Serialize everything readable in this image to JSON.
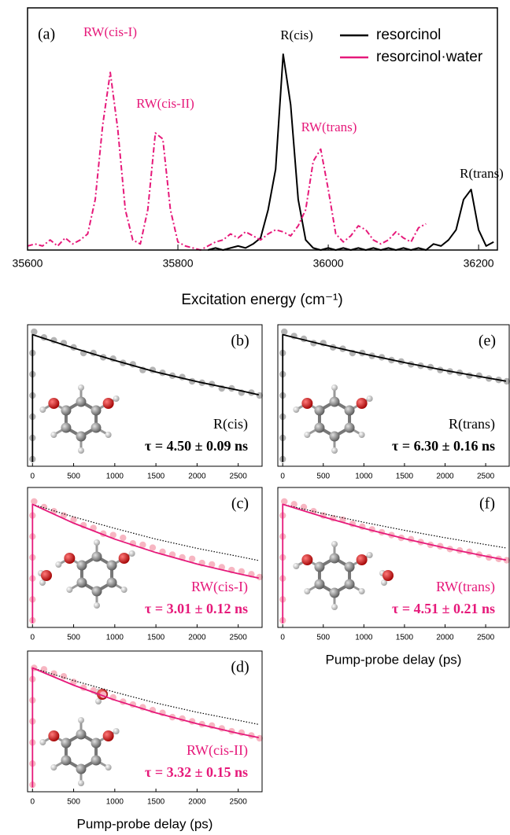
{
  "chart_data": [
    {
      "type": "line",
      "panel_label": "(a)",
      "xlabel": "Excitation energy (cm⁻¹)",
      "xlim": [
        35600,
        36225
      ],
      "ylim": [
        0,
        1.2
      ],
      "xticks": [
        35600,
        35800,
        36000,
        36200
      ],
      "legend": "upper right",
      "annotations": [
        {
          "text": "RW(cis-I)",
          "color": "#e6197a"
        },
        {
          "text": "RW(cis-II)",
          "color": "#e6197a"
        },
        {
          "text": "R(cis)",
          "color": "#000000"
        },
        {
          "text": "RW(trans)",
          "color": "#e6197a"
        },
        {
          "text": "R(trans)",
          "color": "#000000"
        }
      ],
      "x": [
        35600,
        35610,
        35620,
        35630,
        35640,
        35650,
        35660,
        35670,
        35680,
        35690,
        35700,
        35710,
        35720,
        35730,
        35740,
        35750,
        35760,
        35770,
        35780,
        35790,
        35800,
        35810,
        35820,
        35830,
        35840,
        35850,
        35860,
        35870,
        35880,
        35890,
        35900,
        35910,
        35920,
        35930,
        35940,
        35950,
        35960,
        35970,
        35980,
        35990,
        36000,
        36010,
        36020,
        36030,
        36040,
        36050,
        36060,
        36070,
        36080,
        36090,
        36100,
        36110,
        36120,
        36130,
        36140,
        36150,
        36160,
        36170,
        36180,
        36190,
        36200,
        36210,
        36220
      ],
      "series": [
        {
          "name": "resorcinol",
          "color": "#000000",
          "style": "line",
          "values": [
            null,
            null,
            null,
            null,
            null,
            null,
            null,
            null,
            null,
            null,
            null,
            null,
            null,
            null,
            null,
            null,
            null,
            null,
            null,
            null,
            null,
            null,
            null,
            null,
            0.0,
            0.01,
            0.0,
            0.01,
            0.02,
            0.01,
            0.03,
            0.06,
            0.2,
            0.4,
            0.97,
            0.72,
            0.25,
            0.05,
            0.01,
            0.0,
            0.01,
            0.0,
            0.01,
            0.0,
            0.01,
            0.0,
            0.01,
            0.0,
            0.01,
            0.0,
            0.01,
            0.0,
            0.01,
            0.0,
            0.03,
            0.02,
            0.05,
            0.1,
            0.25,
            0.3,
            0.1,
            0.02,
            0.04
          ]
        },
        {
          "name": "resorcinol·water",
          "color": "#e6197a",
          "style": "dashdot",
          "values": [
            0.02,
            0.03,
            0.02,
            0.05,
            0.02,
            0.06,
            0.03,
            0.05,
            0.08,
            0.25,
            0.62,
            0.88,
            0.6,
            0.2,
            0.05,
            0.03,
            0.2,
            0.58,
            0.55,
            0.2,
            0.04,
            0.02,
            0.01,
            0.0,
            0.02,
            0.04,
            0.05,
            0.08,
            0.06,
            0.09,
            0.07,
            0.05,
            0.08,
            0.1,
            0.09,
            0.07,
            0.12,
            0.2,
            0.44,
            0.5,
            0.3,
            0.08,
            0.04,
            0.07,
            0.12,
            0.1,
            0.05,
            0.03,
            0.05,
            0.09,
            0.06,
            0.04,
            0.11,
            0.13,
            null,
            null,
            null,
            null,
            null,
            null,
            null,
            null,
            null
          ]
        }
      ]
    },
    {
      "type": "scatter",
      "panel_label": "(b)",
      "annotations": [
        {
          "text": "R(cis)",
          "color": "#000000"
        },
        {
          "text": "τ = 4.50 ± 0.09 ns",
          "color": "#000000"
        }
      ],
      "xlim": [
        -60,
        2790
      ],
      "ylim": [
        0,
        1
      ],
      "xticks": [
        0,
        500,
        1000,
        1500,
        2000,
        2500
      ],
      "series": [
        {
          "color": "#b4b4b4",
          "style": "markers",
          "x": [
            0,
            0,
            0,
            0,
            0,
            0,
            20,
            140,
            260,
            380,
            500,
            620,
            740,
            860,
            980,
            1100,
            1220,
            1340,
            1460,
            1580,
            1700,
            1820,
            1940,
            2060,
            2180,
            2300,
            2420,
            2540,
            2660,
            2760
          ],
          "values": [
            0.05,
            0.2,
            0.35,
            0.5,
            0.65,
            0.8,
            0.95,
            0.91,
            0.89,
            0.87,
            0.84,
            0.8,
            0.8,
            0.77,
            0.76,
            0.73,
            0.72,
            0.68,
            0.68,
            0.66,
            0.64,
            0.63,
            0.6,
            0.59,
            0.58,
            0.55,
            0.55,
            0.52,
            0.52,
            0.5
          ]
        },
        {
          "color": "#000000",
          "style": "line",
          "x": [
            0,
            0,
            500,
            1000,
            1500,
            2000,
            2500,
            2750
          ],
          "values": [
            0.03,
            0.93,
            0.835,
            0.748,
            0.666,
            0.598,
            0.537,
            0.505
          ]
        }
      ]
    },
    {
      "type": "scatter",
      "panel_label": "(c)",
      "annotations": [
        {
          "text": "RW(cis-I)",
          "color": "#e6197a"
        },
        {
          "text": "τ = 3.01 ± 0.12 ns",
          "color": "#e6197a"
        }
      ],
      "xlim": [
        -60,
        2790
      ],
      "ylim": [
        0,
        1
      ],
      "xticks": [
        0,
        500,
        1000,
        1500,
        2000,
        2500
      ],
      "series": [
        {
          "color": "#f7b6c2",
          "style": "markers",
          "x": [
            0,
            0,
            0,
            0,
            0,
            0,
            20,
            140,
            260,
            380,
            500,
            620,
            740,
            860,
            980,
            1100,
            1220,
            1340,
            1460,
            1580,
            1700,
            1820,
            1940,
            2060,
            2180,
            2300,
            2420,
            2540,
            2660,
            2760
          ],
          "values": [
            0.05,
            0.2,
            0.35,
            0.5,
            0.65,
            0.8,
            0.9,
            0.86,
            0.83,
            0.8,
            0.77,
            0.73,
            0.71,
            0.67,
            0.66,
            0.64,
            0.6,
            0.59,
            0.57,
            0.54,
            0.52,
            0.5,
            0.49,
            0.46,
            0.45,
            0.43,
            0.41,
            0.4,
            0.38,
            0.36
          ]
        },
        {
          "color": "#000000",
          "style": "dotted",
          "x": [
            0,
            500,
            1000,
            1500,
            2000,
            2500,
            2750
          ],
          "values": [
            0.88,
            0.79,
            0.708,
            0.631,
            0.565,
            0.508,
            0.478
          ]
        },
        {
          "color": "#e6197a",
          "style": "line",
          "x": [
            0,
            0,
            500,
            1000,
            1500,
            2000,
            2500,
            2750
          ],
          "values": [
            0.03,
            0.88,
            0.745,
            0.631,
            0.535,
            0.453,
            0.384,
            0.352
          ]
        }
      ]
    },
    {
      "type": "scatter",
      "panel_label": "(d)",
      "xlabel": "Pump-probe delay (ps)",
      "annotations": [
        {
          "text": "RW(cis-II)",
          "color": "#e6197a"
        },
        {
          "text": "τ = 3.32 ± 0.15 ns",
          "color": "#e6197a"
        }
      ],
      "xlim": [
        -60,
        2790
      ],
      "ylim": [
        0,
        1
      ],
      "xticks": [
        0,
        500,
        1000,
        1500,
        2000,
        2500
      ],
      "series": [
        {
          "color": "#f7b6c2",
          "style": "markers",
          "x": [
            0,
            0,
            0,
            0,
            0,
            0,
            20,
            140,
            260,
            380,
            500,
            620,
            740,
            860,
            980,
            1100,
            1220,
            1340,
            1460,
            1580,
            1700,
            1820,
            1940,
            2060,
            2180,
            2300,
            2420,
            2540,
            2660,
            2760
          ],
          "values": [
            0.05,
            0.2,
            0.35,
            0.5,
            0.65,
            0.8,
            0.88,
            0.87,
            0.84,
            0.82,
            0.78,
            0.74,
            0.72,
            0.69,
            0.67,
            0.64,
            0.62,
            0.6,
            0.58,
            0.56,
            0.53,
            0.52,
            0.5,
            0.48,
            0.47,
            0.45,
            0.43,
            0.42,
            0.4,
            0.38
          ]
        },
        {
          "color": "#000000",
          "style": "dotted",
          "x": [
            0,
            500,
            1000,
            1500,
            2000,
            2500,
            2750
          ],
          "values": [
            0.88,
            0.79,
            0.708,
            0.631,
            0.565,
            0.508,
            0.478
          ]
        },
        {
          "color": "#e6197a",
          "style": "line",
          "x": [
            0,
            0,
            500,
            1000,
            1500,
            2000,
            2500,
            2750
          ],
          "values": [
            0.03,
            0.88,
            0.757,
            0.652,
            0.561,
            0.483,
            0.415,
            0.385
          ]
        }
      ]
    },
    {
      "type": "scatter",
      "panel_label": "(e)",
      "annotations": [
        {
          "text": "R(trans)",
          "color": "#000000"
        },
        {
          "text": "τ = 6.30 ± 0.16 ns",
          "color": "#000000"
        }
      ],
      "xlim": [
        -60,
        2790
      ],
      "ylim": [
        0,
        1
      ],
      "xticks": [
        0,
        500,
        1000,
        1500,
        2000,
        2500
      ],
      "series": [
        {
          "color": "#b4b4b4",
          "style": "markers",
          "x": [
            0,
            0,
            0,
            0,
            0,
            0,
            20,
            140,
            260,
            380,
            500,
            620,
            740,
            860,
            980,
            1100,
            1220,
            1340,
            1460,
            1580,
            1700,
            1820,
            1940,
            2060,
            2180,
            2300,
            2420,
            2540,
            2660,
            2760
          ],
          "values": [
            0.05,
            0.2,
            0.35,
            0.5,
            0.65,
            0.8,
            0.95,
            0.92,
            0.9,
            0.87,
            0.87,
            0.84,
            0.83,
            0.8,
            0.8,
            0.78,
            0.77,
            0.75,
            0.74,
            0.72,
            0.71,
            0.7,
            0.68,
            0.67,
            0.66,
            0.64,
            0.64,
            0.62,
            0.61,
            0.6
          ]
        },
        {
          "color": "#000000",
          "style": "line",
          "x": [
            0,
            0,
            500,
            1000,
            1500,
            2000,
            2500,
            2750
          ],
          "values": [
            0.03,
            0.93,
            0.859,
            0.794,
            0.733,
            0.677,
            0.626,
            0.601
          ]
        }
      ]
    },
    {
      "type": "scatter",
      "panel_label": "(f)",
      "xlabel": "Pump-probe delay (ps)",
      "annotations": [
        {
          "text": "RW(trans)",
          "color": "#e6197a"
        },
        {
          "text": "τ = 4.51 ± 0.21 ns",
          "color": "#e6197a"
        }
      ],
      "xlim": [
        -60,
        2790
      ],
      "ylim": [
        0,
        1
      ],
      "xticks": [
        0,
        500,
        1000,
        1500,
        2000,
        2500
      ],
      "series": [
        {
          "color": "#f7b6c2",
          "style": "markers",
          "x": [
            0,
            0,
            0,
            0,
            0,
            0,
            20,
            140,
            260,
            380,
            500,
            620,
            740,
            860,
            980,
            1100,
            1220,
            1340,
            1460,
            1580,
            1700,
            1820,
            1940,
            2060,
            2180,
            2300,
            2420,
            2540,
            2660,
            2760
          ],
          "values": [
            0.05,
            0.2,
            0.35,
            0.5,
            0.65,
            0.8,
            0.9,
            0.88,
            0.86,
            0.83,
            0.8,
            0.78,
            0.77,
            0.74,
            0.72,
            0.7,
            0.68,
            0.66,
            0.64,
            0.63,
            0.61,
            0.59,
            0.58,
            0.56,
            0.55,
            0.54,
            0.52,
            0.5,
            0.49,
            0.48
          ]
        },
        {
          "color": "#000000",
          "style": "dotted",
          "x": [
            0,
            500,
            1000,
            1500,
            2000,
            2500,
            2750
          ],
          "values": [
            0.88,
            0.813,
            0.751,
            0.694,
            0.641,
            0.592,
            0.568
          ]
        },
        {
          "color": "#e6197a",
          "style": "line",
          "x": [
            0,
            0,
            500,
            1000,
            1500,
            2000,
            2500,
            2750
          ],
          "values": [
            0.03,
            0.88,
            0.79,
            0.708,
            0.634,
            0.568,
            0.509,
            0.482
          ]
        }
      ]
    }
  ]
}
